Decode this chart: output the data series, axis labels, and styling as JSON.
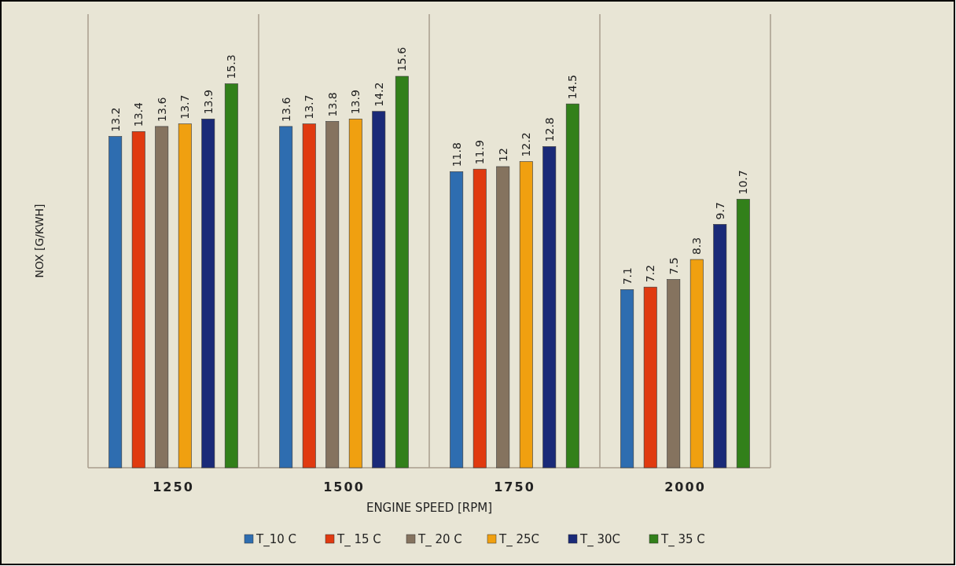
{
  "chart_data": {
    "type": "bar",
    "xlabel": "ENGINE SPEED [RPM]",
    "ylabel": "NOX [G/KWH]",
    "categories": [
      "1250",
      "1500",
      "1750",
      "2000"
    ],
    "series": [
      {
        "name": "T_10 C",
        "color": "#2e6db0",
        "values": [
          13.2,
          13.6,
          11.8,
          7.1
        ]
      },
      {
        "name": "T_ 15 C",
        "color": "#e03a10",
        "values": [
          13.4,
          13.7,
          11.9,
          7.2
        ]
      },
      {
        "name": "T_ 20 C",
        "color": "#85735f",
        "values": [
          13.6,
          13.8,
          12,
          7.5
        ]
      },
      {
        "name": "T_ 25C",
        "color": "#f0a010",
        "values": [
          13.7,
          13.9,
          12.2,
          8.3
        ]
      },
      {
        "name": "T_ 30C",
        "color": "#1a2a78",
        "values": [
          13.9,
          14.2,
          12.8,
          9.7
        ]
      },
      {
        "name": "T_ 35 C",
        "color": "#32801a",
        "values": [
          15.3,
          15.6,
          14.5,
          10.7
        ]
      }
    ],
    "data_labels": true,
    "grid": "x",
    "legend": "bottom"
  }
}
